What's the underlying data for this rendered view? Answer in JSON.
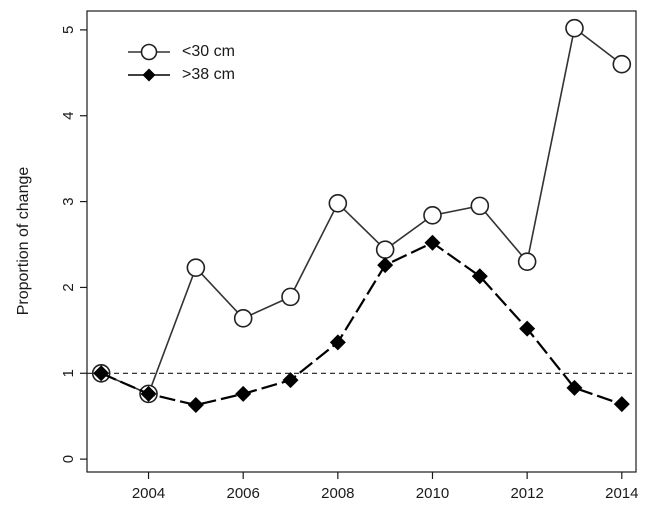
{
  "chart_data": {
    "type": "line",
    "title": "",
    "xlabel": "",
    "ylabel": "Proportion of change",
    "xlim": [
      2002.7,
      2014.3
    ],
    "ylim": [
      -0.15,
      5.22
    ],
    "x_ticks": [
      2004,
      2006,
      2008,
      2010,
      2012,
      2014
    ],
    "y_ticks": [
      0,
      1,
      2,
      3,
      4,
      5
    ],
    "grid": false,
    "legend": "top-left",
    "reference_line": {
      "y": 1,
      "style": "dashed"
    },
    "series": [
      {
        "name": "<30 cm",
        "marker": "open-circle",
        "line": "solid",
        "color": "#333333",
        "x": [
          2003,
          2004,
          2005,
          2006,
          2007,
          2008,
          2009,
          2010,
          2011,
          2012,
          2013,
          2014
        ],
        "values": [
          1.0,
          0.76,
          2.23,
          1.64,
          1.89,
          2.98,
          2.44,
          2.84,
          2.95,
          2.3,
          5.02,
          4.6
        ]
      },
      {
        "name": ">38 cm",
        "marker": "filled-diamond",
        "line": "dashed",
        "color": "#000000",
        "x": [
          2003,
          2004,
          2005,
          2006,
          2007,
          2008,
          2009,
          2010,
          2011,
          2012,
          2013,
          2014
        ],
        "values": [
          1.0,
          0.76,
          0.63,
          0.76,
          0.92,
          1.36,
          2.26,
          2.52,
          2.13,
          1.52,
          0.83,
          0.64
        ]
      }
    ]
  }
}
